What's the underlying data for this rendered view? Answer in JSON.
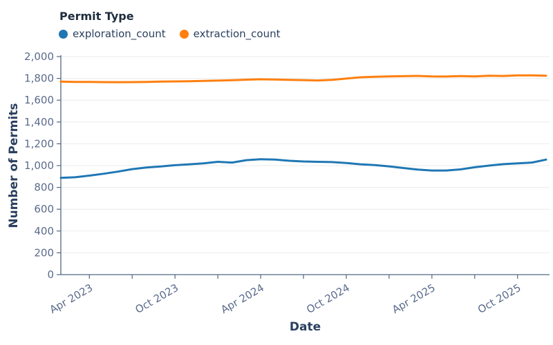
{
  "colors": {
    "blue_series": "#1f77b4",
    "orange_series": "#ff7f0e",
    "axis_line": "#506784",
    "tick_label": "#5b6b8c",
    "axis_title": "#2a3f5f",
    "legend_title": "#1f2d3d",
    "gridline": "#e9ebee",
    "background": "#ffffff"
  },
  "chart_data": {
    "type": "line",
    "title": "",
    "legend_title": "Permit Type",
    "xlabel": "Date",
    "ylabel": "Number of Permits",
    "ylim": [
      0,
      2000
    ],
    "grid": "horizontal",
    "legend_position": "top-left",
    "x": [
      "2023-02",
      "2023-03",
      "2023-04",
      "2023-05",
      "2023-06",
      "2023-07",
      "2023-08",
      "2023-09",
      "2023-10",
      "2023-11",
      "2023-12",
      "2024-01",
      "2024-02",
      "2024-03",
      "2024-04",
      "2024-05",
      "2024-06",
      "2024-07",
      "2024-08",
      "2024-09",
      "2024-10",
      "2024-11",
      "2024-12",
      "2025-01",
      "2025-02",
      "2025-03",
      "2025-04",
      "2025-05",
      "2025-06",
      "2025-07",
      "2025-08",
      "2025-09",
      "2025-10",
      "2025-11",
      "2025-12"
    ],
    "series": [
      {
        "name": "exploration_count",
        "color": "#1f77b4",
        "values": [
          888,
          893,
          908,
          925,
          945,
          968,
          982,
          992,
          1004,
          1012,
          1020,
          1035,
          1028,
          1050,
          1058,
          1055,
          1044,
          1038,
          1035,
          1032,
          1024,
          1012,
          1005,
          993,
          978,
          963,
          955,
          955,
          965,
          985,
          1000,
          1013,
          1021,
          1028,
          1055
        ]
      },
      {
        "name": "extraction_count",
        "color": "#ff7f0e",
        "values": [
          1770,
          1768,
          1767,
          1766,
          1765,
          1766,
          1768,
          1770,
          1772,
          1774,
          1777,
          1780,
          1783,
          1788,
          1792,
          1790,
          1787,
          1784,
          1781,
          1786,
          1798,
          1810,
          1815,
          1818,
          1820,
          1823,
          1818,
          1817,
          1821,
          1818,
          1825,
          1822,
          1828,
          1828,
          1825
        ]
      }
    ],
    "y_ticks": [
      {
        "value": 0,
        "label": "0"
      },
      {
        "value": 200,
        "label": "200"
      },
      {
        "value": 400,
        "label": "400"
      },
      {
        "value": 600,
        "label": "600"
      },
      {
        "value": 800,
        "label": "800"
      },
      {
        "value": 1000,
        "label": "1,000"
      },
      {
        "value": 1200,
        "label": "1,200"
      },
      {
        "value": 1400,
        "label": "1,400"
      },
      {
        "value": 1600,
        "label": "1,600"
      },
      {
        "value": 1800,
        "label": "1,800"
      },
      {
        "value": 2000,
        "label": "2,000"
      }
    ],
    "x_ticks": [
      {
        "index": 2,
        "label": "Apr 2023"
      },
      {
        "index": 5,
        "label": ""
      },
      {
        "index": 8,
        "label": "Oct 2023"
      },
      {
        "index": 11,
        "label": ""
      },
      {
        "index": 14,
        "label": "Apr 2024"
      },
      {
        "index": 17,
        "label": ""
      },
      {
        "index": 20,
        "label": "Oct 2024"
      },
      {
        "index": 23,
        "label": ""
      },
      {
        "index": 26,
        "label": "Apr 2025"
      },
      {
        "index": 29,
        "label": ""
      },
      {
        "index": 32,
        "label": "Oct 2025"
      }
    ],
    "x_tick_label_angle": -30
  }
}
